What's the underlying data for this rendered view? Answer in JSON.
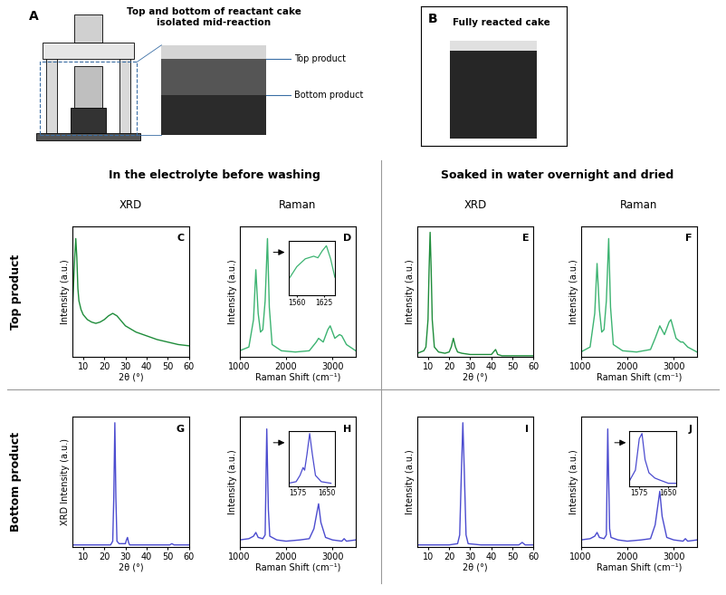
{
  "figure": {
    "panel_A": {
      "letter": "A",
      "title": "Top and bottom of reactant cake\nisolated mid-reaction",
      "labels": [
        "Top product",
        "Bottom product"
      ]
    },
    "panel_B": {
      "letter": "B",
      "title": "Fully reacted cake"
    },
    "sections": [
      {
        "title": "In the electrolyte before washing",
        "columns": [
          "XRD",
          "Raman"
        ]
      },
      {
        "title": "Soaked in water overnight and dried",
        "columns": [
          "XRD",
          "Raman"
        ]
      }
    ],
    "rows": [
      "Top product",
      "Bottom product"
    ]
  },
  "chart_data": [
    {
      "type": "line",
      "panel": "C",
      "x_label": "2θ (°)",
      "y_label": "Intensity (a.u.)",
      "color": "#1e8c3a",
      "x": [
        5,
        6,
        6.5,
        7,
        7.5,
        8,
        9,
        10,
        12,
        14,
        16,
        18,
        20,
        22,
        24,
        26,
        28,
        30,
        35,
        40,
        45,
        50,
        55,
        60
      ],
      "values": [
        40,
        80,
        95,
        80,
        55,
        45,
        38,
        34,
        30,
        28,
        27,
        28,
        30,
        33,
        35,
        33,
        29,
        25,
        20,
        17,
        14,
        12,
        10,
        9
      ],
      "xlim": [
        5,
        60
      ],
      "xticks": [
        10,
        20,
        30,
        40,
        50,
        60
      ],
      "ylim": [
        0,
        105
      ],
      "yticks": [],
      "tick_labels": "x"
    },
    {
      "type": "line",
      "panel": "D",
      "x_label": "Raman Shift (cm⁻¹)",
      "y_label": "Intensity (a.u.)",
      "color": "#3cb371",
      "x": [
        1000,
        1200,
        1300,
        1350,
        1400,
        1450,
        1500,
        1550,
        1600,
        1640,
        1700,
        1900,
        2200,
        2500,
        2650,
        2700,
        2800,
        2900,
        2950,
        3050,
        3150,
        3200,
        3300,
        3500
      ],
      "values": [
        5,
        8,
        30,
        70,
        35,
        20,
        22,
        45,
        95,
        40,
        10,
        5,
        4,
        5,
        12,
        15,
        12,
        22,
        25,
        15,
        18,
        17,
        10,
        5
      ],
      "xlim": [
        1000,
        3500
      ],
      "xticks": [
        1000,
        2000,
        3000
      ],
      "ylim": [
        0,
        105
      ],
      "yticks": [],
      "tick_labels": "x",
      "inset": {
        "x": [
          1540,
          1560,
          1580,
          1600,
          1610,
          1620,
          1630,
          1640,
          1650
        ],
        "values": [
          30,
          55,
          70,
          75,
          72,
          85,
          95,
          70,
          35
        ],
        "xlim": [
          1540,
          1650
        ],
        "xticks": [
          1560,
          1625
        ],
        "ylim": [
          0,
          105
        ],
        "yticks": []
      }
    },
    {
      "type": "line",
      "panel": "E",
      "x_label": "2θ (°)",
      "y_label": "Intensity (a.u.)",
      "color": "#1e8c3a",
      "x": [
        5,
        8,
        9,
        10,
        10.5,
        11,
        11.5,
        12,
        13,
        15,
        18,
        20,
        21,
        22,
        23,
        24,
        26,
        30,
        35,
        40,
        41,
        42,
        43,
        45,
        50,
        55,
        60
      ],
      "values": [
        3,
        5,
        8,
        30,
        70,
        100,
        70,
        30,
        8,
        4,
        3,
        4,
        8,
        15,
        8,
        4,
        3,
        2,
        2,
        2,
        4,
        6,
        2,
        1,
        1,
        1,
        1
      ],
      "xlim": [
        5,
        60
      ],
      "xticks": [
        10,
        20,
        30,
        40,
        50,
        60
      ],
      "ylim": [
        0,
        105
      ],
      "yticks": [],
      "tick_labels": "x"
    },
    {
      "type": "line",
      "panel": "F",
      "x_label": "Raman Shift (cm⁻¹)",
      "y_label": "Intensity (a.u.)",
      "color": "#3cb371",
      "x": [
        1000,
        1200,
        1300,
        1350,
        1400,
        1450,
        1500,
        1550,
        1600,
        1640,
        1700,
        1900,
        2200,
        2500,
        2600,
        2700,
        2800,
        2900,
        2940,
        3050,
        3150,
        3200,
        3300,
        3500
      ],
      "values": [
        4,
        8,
        35,
        75,
        38,
        20,
        22,
        45,
        95,
        40,
        10,
        5,
        4,
        6,
        15,
        25,
        18,
        28,
        30,
        15,
        12,
        12,
        8,
        4
      ],
      "xlim": [
        1000,
        3500
      ],
      "xticks": [
        1000,
        2000,
        3000
      ],
      "ylim": [
        0,
        105
      ],
      "yticks": [],
      "tick_labels": "x"
    },
    {
      "type": "line",
      "panel": "G",
      "x_label": "2θ (°)",
      "y_label": "XRD Intensity (a.u.)",
      "color": "#4b4bcf",
      "x": [
        5,
        10,
        20,
        23,
        24,
        24.5,
        25,
        25.5,
        26,
        27,
        30,
        30.5,
        31,
        31.5,
        32,
        40,
        50,
        51,
        52,
        53,
        55,
        60
      ],
      "values": [
        2,
        2,
        2,
        2,
        5,
        40,
        100,
        40,
        5,
        3,
        3,
        6,
        8,
        4,
        2,
        2,
        2,
        2,
        3,
        2,
        2,
        2
      ],
      "xlim": [
        5,
        60
      ],
      "xticks": [
        10,
        20,
        30,
        40,
        50,
        60
      ],
      "ylim": [
        0,
        105
      ],
      "yticks": [],
      "tick_labels": "x"
    },
    {
      "type": "line",
      "panel": "H",
      "x_label": "Raman Shift (cm⁻¹)",
      "y_label": "Intensity (a.u.)",
      "color": "#4b4bcf",
      "x": [
        1000,
        1200,
        1300,
        1350,
        1400,
        1500,
        1550,
        1585,
        1620,
        1650,
        1800,
        2000,
        2300,
        2500,
        2600,
        2700,
        2750,
        2850,
        3000,
        3200,
        3250,
        3300,
        3500
      ],
      "values": [
        6,
        7,
        9,
        12,
        8,
        7,
        10,
        95,
        30,
        9,
        6,
        5,
        6,
        7,
        15,
        35,
        20,
        8,
        6,
        5,
        7,
        5,
        6
      ],
      "xlim": [
        1000,
        3500
      ],
      "xticks": [
        1000,
        2000,
        3000
      ],
      "ylim": [
        0,
        105
      ],
      "yticks": [],
      "tick_labels": "x",
      "inset": {
        "x": [
          1550,
          1570,
          1580,
          1588,
          1592,
          1598,
          1605,
          1612,
          1620,
          1635,
          1660
        ],
        "values": [
          5,
          8,
          20,
          35,
          30,
          60,
          100,
          60,
          20,
          8,
          5
        ],
        "xlim": [
          1550,
          1670
        ],
        "xticks": [
          1575,
          1650
        ],
        "ylim": [
          0,
          105
        ],
        "yticks": []
      }
    },
    {
      "type": "line",
      "panel": "I",
      "x_label": "2θ (°)",
      "y_label": "Intensity (a.u.)",
      "color": "#4b4bcf",
      "x": [
        5,
        10,
        20,
        24,
        25,
        25.8,
        26.5,
        27.2,
        28,
        29,
        35,
        45,
        53,
        54.6,
        56,
        60
      ],
      "values": [
        2,
        2,
        2,
        3,
        10,
        60,
        100,
        60,
        10,
        3,
        2,
        2,
        2,
        4,
        2,
        2
      ],
      "xlim": [
        5,
        60
      ],
      "xticks": [
        10,
        20,
        30,
        40,
        50,
        60
      ],
      "ylim": [
        0,
        105
      ],
      "yticks": [],
      "tick_labels": "x"
    },
    {
      "type": "line",
      "panel": "J",
      "x_label": "Raman Shift (cm⁻¹)",
      "y_label": "Intensity (a.u.)",
      "color": "#4b4bcf",
      "x": [
        1000,
        1200,
        1300,
        1350,
        1400,
        1500,
        1550,
        1580,
        1620,
        1650,
        1800,
        2000,
        2300,
        2500,
        2600,
        2700,
        2750,
        2850,
        3000,
        3200,
        3250,
        3300,
        3500
      ],
      "values": [
        6,
        7,
        9,
        12,
        8,
        7,
        10,
        95,
        15,
        8,
        6,
        5,
        6,
        7,
        18,
        45,
        25,
        8,
        6,
        5,
        7,
        5,
        6
      ],
      "xlim": [
        1000,
        3500
      ],
      "xticks": [
        1000,
        2000,
        3000
      ],
      "ylim": [
        0,
        105
      ],
      "yticks": [],
      "tick_labels": "x",
      "inset": {
        "x": [
          1550,
          1565,
          1575,
          1582,
          1590,
          1600,
          1615,
          1625,
          1650,
          1670
        ],
        "values": [
          10,
          30,
          90,
          100,
          50,
          25,
          15,
          12,
          5,
          5
        ],
        "xlim": [
          1550,
          1670
        ],
        "xticks": [
          1575,
          1650
        ],
        "ylim": [
          0,
          105
        ],
        "yticks": []
      }
    }
  ]
}
